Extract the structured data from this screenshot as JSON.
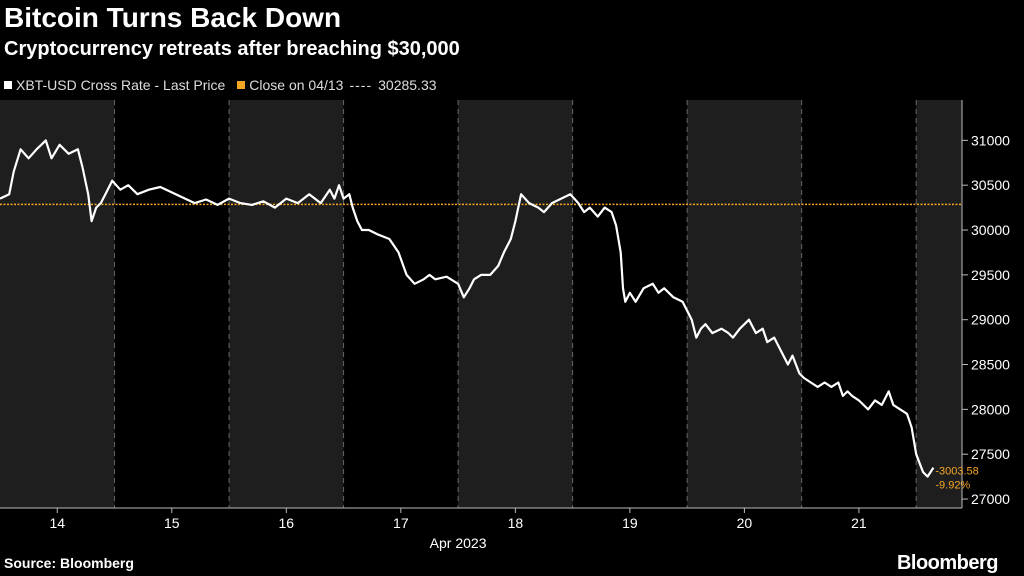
{
  "header": {
    "title": "Bitcoin Turns Back Down",
    "subtitle": "Cryptocurrency retreats after breaching $30,000"
  },
  "legend": {
    "series_label": "XBT-USD Cross Rate - Last Price",
    "series_color": "#ffffff",
    "ref_label": "Close on 04/13",
    "ref_dashes": "----",
    "ref_value": "30285.33",
    "ref_color": "#f5a623"
  },
  "footer": {
    "source": "Source: Bloomberg",
    "brand": "Bloomberg"
  },
  "chart_data": {
    "type": "line",
    "title": "Bitcoin Turns Back Down",
    "xlabel": "Apr 2023",
    "ylabel": "",
    "x_ticks": [
      "14",
      "15",
      "16",
      "17",
      "18",
      "19",
      "20",
      "21"
    ],
    "ylim": [
      26900,
      31450
    ],
    "y_ticks": [
      27000,
      27500,
      28000,
      28500,
      29000,
      29500,
      30000,
      30500,
      31000
    ],
    "y_tick_labels": [
      "27000",
      "27500",
      "28000",
      "28500",
      "29000",
      "29500",
      "30000",
      "30500",
      "31000"
    ],
    "xlim": [
      13.5,
      21.9
    ],
    "reference_line": {
      "label": "Close on 04/13",
      "value": 30285.33
    },
    "annotations": {
      "change": "-3003.58",
      "percent": "-9.92%"
    },
    "series": [
      {
        "name": "XBT-USD Cross Rate - Last Price",
        "x": [
          13.5,
          13.58,
          13.62,
          13.68,
          13.75,
          13.82,
          13.9,
          13.95,
          14.02,
          14.1,
          14.18,
          14.22,
          14.27,
          14.3,
          14.34,
          14.38,
          14.42,
          14.48,
          14.55,
          14.62,
          14.7,
          14.8,
          14.9,
          15.0,
          15.1,
          15.2,
          15.3,
          15.4,
          15.5,
          15.6,
          15.7,
          15.8,
          15.9,
          16.0,
          16.1,
          16.2,
          16.3,
          16.38,
          16.42,
          16.46,
          16.5,
          16.55,
          16.58,
          16.62,
          16.66,
          16.72,
          16.8,
          16.9,
          16.98,
          17.05,
          17.12,
          17.2,
          17.25,
          17.3,
          17.4,
          17.5,
          17.55,
          17.6,
          17.64,
          17.7,
          17.78,
          17.85,
          17.9,
          17.96,
          18.0,
          18.05,
          18.12,
          18.2,
          18.25,
          18.32,
          18.4,
          18.48,
          18.55,
          18.6,
          18.65,
          18.72,
          18.78,
          18.84,
          18.88,
          18.92,
          18.94,
          18.96,
          19.0,
          19.05,
          19.12,
          19.2,
          19.25,
          19.3,
          19.38,
          19.46,
          19.54,
          19.58,
          19.62,
          19.66,
          19.72,
          19.8,
          19.86,
          19.9,
          19.96,
          20.04,
          20.1,
          20.16,
          20.2,
          20.26,
          20.32,
          20.38,
          20.42,
          20.48,
          20.52,
          20.58,
          20.64,
          20.7,
          20.76,
          20.82,
          20.86,
          20.9,
          20.94,
          21.0,
          21.08,
          21.14,
          21.2,
          21.26,
          21.3,
          21.36,
          21.42,
          21.46,
          21.5,
          21.53,
          21.56,
          21.6,
          21.65
        ],
        "values": [
          30350,
          30400,
          30650,
          30900,
          30800,
          30900,
          31000,
          30800,
          30950,
          30850,
          30900,
          30700,
          30400,
          30100,
          30250,
          30300,
          30400,
          30550,
          30450,
          30500,
          30400,
          30450,
          30480,
          30420,
          30360,
          30300,
          30340,
          30280,
          30350,
          30300,
          30280,
          30320,
          30250,
          30350,
          30300,
          30400,
          30300,
          30450,
          30350,
          30500,
          30350,
          30400,
          30250,
          30100,
          30000,
          30000,
          29950,
          29900,
          29750,
          29500,
          29400,
          29450,
          29500,
          29450,
          29480,
          29400,
          29250,
          29350,
          29450,
          29500,
          29500,
          29600,
          29750,
          29900,
          30100,
          30400,
          30300,
          30250,
          30200,
          30300,
          30350,
          30400,
          30300,
          30200,
          30250,
          30150,
          30250,
          30200,
          30050,
          29750,
          29350,
          29200,
          29300,
          29200,
          29350,
          29400,
          29300,
          29350,
          29250,
          29200,
          29000,
          28800,
          28900,
          28950,
          28850,
          28900,
          28850,
          28800,
          28900,
          29000,
          28850,
          28900,
          28750,
          28800,
          28650,
          28500,
          28600,
          28400,
          28350,
          28300,
          28250,
          28300,
          28250,
          28300,
          28150,
          28200,
          28150,
          28100,
          28000,
          28100,
          28050,
          28200,
          28050,
          28000,
          27950,
          27800,
          27500,
          27400,
          27300,
          27250,
          27350
        ]
      }
    ]
  }
}
